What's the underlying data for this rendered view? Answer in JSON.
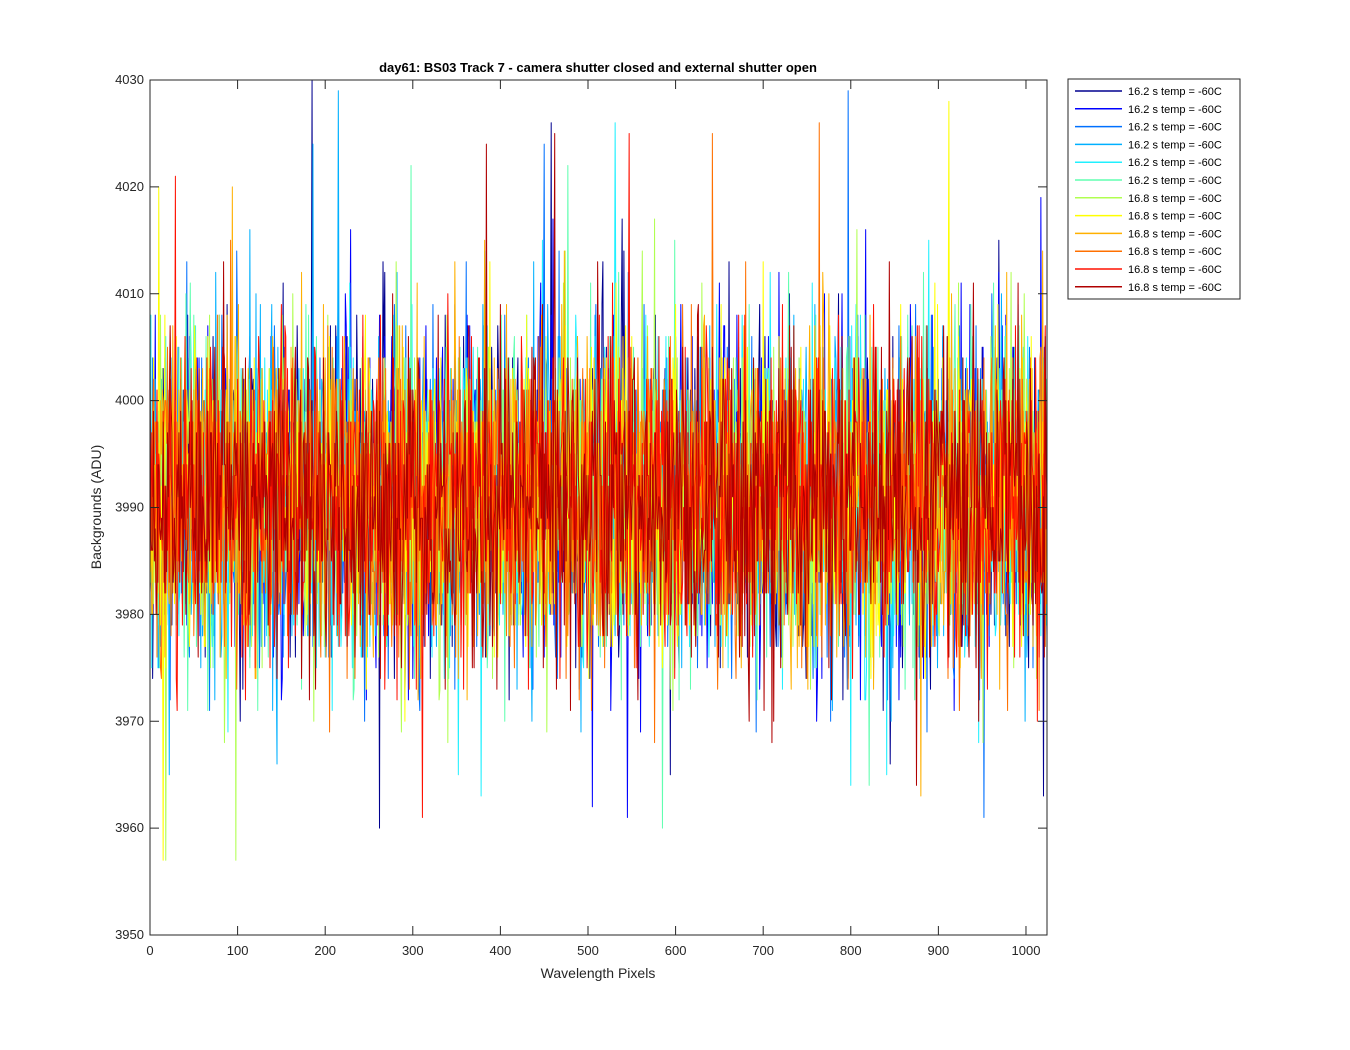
{
  "chart_data": {
    "type": "line",
    "title": "day61: BS03  Track 7 - camera shutter closed and external shutter open",
    "xlabel": "Wavelength Pixels",
    "ylabel": "Backgrounds (ADU)",
    "xlim": [
      0,
      1024
    ],
    "ylim": [
      3950,
      4030
    ],
    "xticks": [
      0,
      100,
      200,
      300,
      400,
      500,
      600,
      700,
      800,
      900,
      1000
    ],
    "yticks": [
      3950,
      3960,
      3970,
      3980,
      3990,
      4000,
      4010,
      4020,
      4030
    ],
    "grid": false,
    "legend_position": "outside-top-right",
    "noise": {
      "mean": 3991,
      "spread": 7.5,
      "min": 3957,
      "max": 4030
    },
    "series": [
      {
        "name": "16.2 s temp = -60C",
        "color": "#00008f",
        "seed": 11,
        "spikes": [
          [
            185,
            4030
          ],
          [
            262,
            3960
          ],
          [
            458,
            4026
          ],
          [
            845,
            3966
          ],
          [
            1020,
            3963
          ]
        ]
      },
      {
        "name": "16.2 s temp = -60C",
        "color": "#0000ff",
        "seed": 23,
        "spikes": [
          [
            505,
            3962
          ],
          [
            545,
            3961
          ],
          [
            1017,
            4019
          ]
        ]
      },
      {
        "name": "16.2 s temp = -60C",
        "color": "#0070ff",
        "seed": 37,
        "spikes": [
          [
            797,
            4029
          ],
          [
            952,
            3961
          ],
          [
            450,
            4024
          ]
        ]
      },
      {
        "name": "16.2 s temp = -60C",
        "color": "#00b0ff",
        "seed": 41,
        "spikes": [
          [
            215,
            4029
          ],
          [
            186,
            4024
          ],
          [
            22,
            3965
          ]
        ]
      },
      {
        "name": "16.2 s temp = -60C",
        "color": "#20f0ff",
        "seed": 53,
        "spikes": [
          [
            531,
            4026
          ],
          [
            378,
            3963
          ],
          [
            800,
            3964
          ]
        ]
      },
      {
        "name": "16.2 s temp = -60C",
        "color": "#60ffb0",
        "seed": 67,
        "spikes": [
          [
            585,
            3960
          ],
          [
            477,
            4022
          ]
        ]
      },
      {
        "name": "16.8 s temp = -60C",
        "color": "#b0ff50",
        "seed": 71,
        "spikes": [
          [
            98,
            3957
          ],
          [
            18,
            3957
          ]
        ]
      },
      {
        "name": "16.8 s temp = -60C",
        "color": "#ffff00",
        "seed": 83,
        "spikes": [
          [
            912,
            4028
          ],
          [
            10,
            4020
          ],
          [
            15,
            3957
          ]
        ]
      },
      {
        "name": "16.8 s temp = -60C",
        "color": "#ffb000",
        "seed": 97,
        "spikes": [
          [
            94,
            4020
          ],
          [
            880,
            3963
          ]
        ]
      },
      {
        "name": "16.8 s temp = -60C",
        "color": "#ff7000",
        "seed": 101,
        "spikes": [
          [
            764,
            4026
          ],
          [
            642,
            4025
          ]
        ]
      },
      {
        "name": "16.8 s temp = -60C",
        "color": "#ff1000",
        "seed": 113,
        "spikes": [
          [
            29,
            4021
          ],
          [
            547,
            4025
          ]
        ]
      },
      {
        "name": "16.8 s temp = -60C",
        "color": "#b00000",
        "seed": 127,
        "spikes": [
          [
            384,
            4024
          ],
          [
            462,
            4025
          ],
          [
            875,
            3964
          ]
        ]
      }
    ]
  }
}
